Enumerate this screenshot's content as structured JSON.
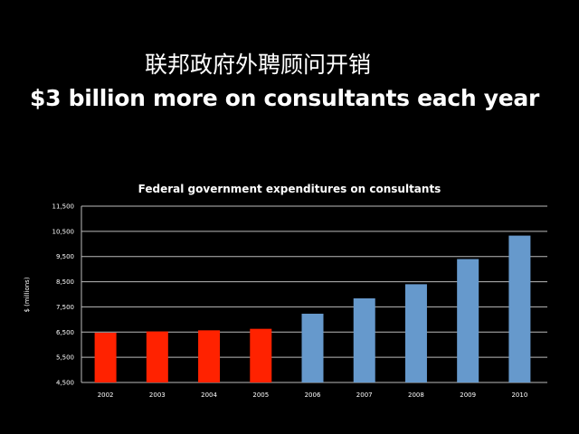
{
  "slide": {
    "title_cn": "联邦政府外聘顾问开销",
    "title": "$3 billion more on consultants each year"
  },
  "chart_data": {
    "type": "bar",
    "title": "Federal government expenditures on consultants",
    "xlabel": "",
    "ylabel": "$ (millions)",
    "categories": [
      "2002",
      "2003",
      "2004",
      "2005",
      "2006",
      "2007",
      "2008",
      "2009",
      "2010"
    ],
    "values": [
      6475,
      6525,
      6570,
      6630,
      7230,
      7840,
      8400,
      9400,
      10330
    ],
    "bar_colors": [
      "#ff2200",
      "#ff2200",
      "#ff2200",
      "#ff2200",
      "#6699cc",
      "#6699cc",
      "#6699cc",
      "#6699cc",
      "#6699cc"
    ],
    "ylim": [
      4500,
      11500
    ],
    "yticks": [
      "4,500",
      "5,500",
      "6,500",
      "7,500",
      "8,500",
      "9,500",
      "10,500",
      "11,500"
    ],
    "ytick_values": [
      4500,
      5500,
      6500,
      7500,
      8500,
      9500,
      10500,
      11500
    ],
    "grid": true,
    "legend": "none"
  }
}
